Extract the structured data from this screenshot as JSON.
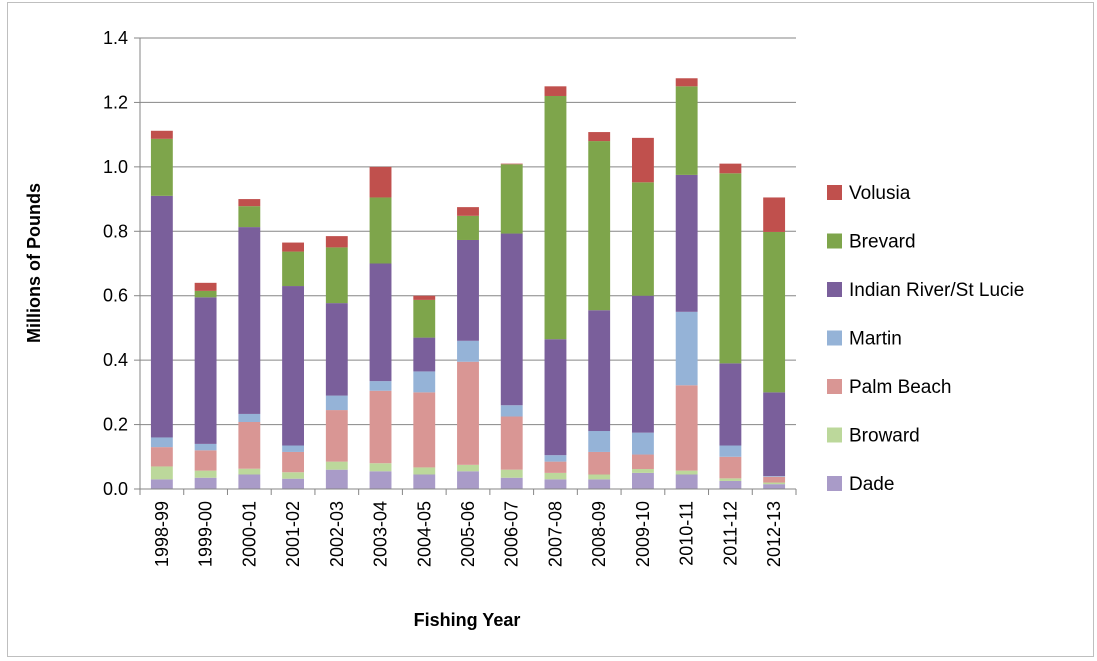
{
  "chart_data": {
    "type": "bar",
    "stacked": true,
    "title": "",
    "xlabel": "Fishing Year",
    "ylabel": "Millions of Pounds",
    "ylim": [
      0,
      1.4
    ],
    "y_ticks": [
      "0.0",
      "0.2",
      "0.4",
      "0.6",
      "0.8",
      "1.0",
      "1.2",
      "1.4"
    ],
    "grid": "horizontal",
    "legend_position": "right",
    "categories": [
      "1998-99",
      "1999-00",
      "2000-01",
      "2001-02",
      "2002-03",
      "2003-04",
      "2004-05",
      "2005-06",
      "2006-07",
      "2007-08",
      "2008-09",
      "2009-10",
      "2010-11",
      "2011-12",
      "2012-13"
    ],
    "series": [
      {
        "name": "Dade",
        "color": "#a99bc8",
        "values": [
          0.03,
          0.035,
          0.045,
          0.032,
          0.06,
          0.055,
          0.045,
          0.055,
          0.035,
          0.03,
          0.03,
          0.05,
          0.045,
          0.025,
          0.015
        ]
      },
      {
        "name": "Broward",
        "color": "#bcd89b",
        "values": [
          0.04,
          0.022,
          0.018,
          0.02,
          0.025,
          0.025,
          0.022,
          0.02,
          0.025,
          0.02,
          0.015,
          0.012,
          0.012,
          0.008,
          0.005
        ]
      },
      {
        "name": "Palm Beach",
        "color": "#d99694",
        "values": [
          0.06,
          0.063,
          0.145,
          0.063,
          0.16,
          0.225,
          0.233,
          0.32,
          0.165,
          0.035,
          0.07,
          0.045,
          0.265,
          0.067,
          0.018
        ]
      },
      {
        "name": "Martin",
        "color": "#95b3d7",
        "values": [
          0.03,
          0.02,
          0.025,
          0.02,
          0.045,
          0.03,
          0.065,
          0.065,
          0.035,
          0.02,
          0.065,
          0.068,
          0.228,
          0.035,
          0.002
        ]
      },
      {
        "name": "Indian River/St Lucie",
        "color": "#7a5f9b",
        "values": [
          0.75,
          0.455,
          0.58,
          0.495,
          0.287,
          0.365,
          0.105,
          0.313,
          0.533,
          0.36,
          0.375,
          0.425,
          0.425,
          0.255,
          0.26
        ]
      },
      {
        "name": "Brevard",
        "color": "#7ea54b",
        "values": [
          0.177,
          0.02,
          0.065,
          0.107,
          0.173,
          0.205,
          0.117,
          0.075,
          0.215,
          0.755,
          0.525,
          0.352,
          0.275,
          0.59,
          0.498
        ]
      },
      {
        "name": "Volusia",
        "color": "#c0504d",
        "values": [
          0.025,
          0.025,
          0.022,
          0.028,
          0.035,
          0.095,
          0.013,
          0.027,
          0.002,
          0.03,
          0.028,
          0.138,
          0.025,
          0.03,
          0.107
        ]
      }
    ]
  }
}
